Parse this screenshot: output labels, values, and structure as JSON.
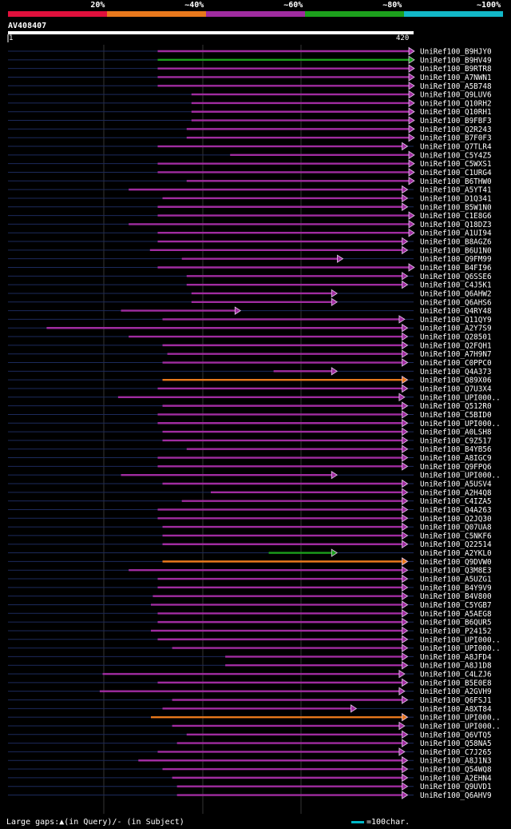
{
  "legend": [
    {
      "label": "20%",
      "color": "#e0103c"
    },
    {
      "label": "~40%",
      "color": "#e8781c"
    },
    {
      "label": "~60%",
      "color": "#a02ca0"
    },
    {
      "label": "~80%",
      "color": "#1ca01c"
    },
    {
      "label": "~100%",
      "color": "#12b8c8"
    }
  ],
  "query": {
    "id": "AV408407",
    "start": "1",
    "end": "420"
  },
  "footer": {
    "gaps_text": "Large gaps:▲(in Query)/- (in Subject)",
    "scale_text": "=100char."
  },
  "chart_data": {
    "type": "alignment",
    "query_length": 420,
    "hits": [
      {
        "name": "UniRef100_B9HJY0",
        "start": 155,
        "end": 420,
        "color": "purple",
        "arrow": "filled"
      },
      {
        "name": "UniRef100_B9HV49",
        "start": 155,
        "end": 420,
        "color": "green",
        "arrow": "filled"
      },
      {
        "name": "UniRef100_B9RTR8",
        "start": 155,
        "end": 420,
        "color": "purple",
        "arrow": "filled"
      },
      {
        "name": "UniRef100_A7NWN1",
        "start": 155,
        "end": 420,
        "color": "purple",
        "arrow": "filled"
      },
      {
        "name": "UniRef100_A5B748",
        "start": 155,
        "end": 420,
        "color": "purple",
        "arrow": "filled"
      },
      {
        "name": "UniRef100_Q9LUV6",
        "start": 190,
        "end": 420,
        "color": "purple",
        "arrow": "filled"
      },
      {
        "name": "UniRef100_Q10RH2",
        "start": 190,
        "end": 420,
        "color": "purple",
        "arrow": "filled"
      },
      {
        "name": "UniRef100_Q10RH1",
        "start": 190,
        "end": 420,
        "color": "purple",
        "arrow": "filled"
      },
      {
        "name": "UniRef100_B9FBF3",
        "start": 190,
        "end": 420,
        "color": "purple",
        "arrow": "filled"
      },
      {
        "name": "UniRef100_Q2R243",
        "start": 185,
        "end": 420,
        "color": "purple",
        "arrow": "filled"
      },
      {
        "name": "UniRef100_B7F0F3",
        "start": 185,
        "end": 420,
        "color": "purple",
        "arrow": "filled"
      },
      {
        "name": "UniRef100_Q7TLR4",
        "start": 155,
        "end": 413,
        "color": "purple",
        "arrow": "filled"
      },
      {
        "name": "UniRef100_C5Y4Z5",
        "start": 230,
        "end": 420,
        "color": "purple",
        "arrow": "filled"
      },
      {
        "name": "UniRef100_C5WXS1",
        "start": 155,
        "end": 420,
        "color": "purple",
        "arrow": "filled"
      },
      {
        "name": "UniRef100_C1URG4",
        "start": 155,
        "end": 420,
        "color": "purple",
        "arrow": "filled"
      },
      {
        "name": "UniRef100_B6THW0",
        "start": 185,
        "end": 420,
        "color": "purple",
        "arrow": "filled"
      },
      {
        "name": "UniRef100_A5YT41",
        "start": 125,
        "end": 413,
        "color": "purple",
        "arrow": "filled"
      },
      {
        "name": "UniRef100_D1Q341",
        "start": 160,
        "end": 413,
        "color": "purple",
        "arrow": "filled"
      },
      {
        "name": "UniRef100_B5W1N0",
        "start": 155,
        "end": 413,
        "color": "purple",
        "arrow": "filled"
      },
      {
        "name": "UniRef100_C1E8G6",
        "start": 155,
        "end": 420,
        "color": "purple",
        "arrow": "filled"
      },
      {
        "name": "UniRef100_Q18DZ3",
        "start": 125,
        "end": 420,
        "color": "purple",
        "arrow": "filled"
      },
      {
        "name": "UniRef100_A1UI94",
        "start": 155,
        "end": 420,
        "color": "purple",
        "arrow": "filled"
      },
      {
        "name": "UniRef100_B8AGZ6",
        "start": 155,
        "end": 413,
        "color": "purple",
        "arrow": "filled"
      },
      {
        "name": "UniRef100_B6U1N0",
        "start": 147,
        "end": 413,
        "color": "purple",
        "arrow": "filled"
      },
      {
        "name": "UniRef100_Q9FM99",
        "start": 180,
        "end": 346,
        "color": "purple",
        "arrow": "filled"
      },
      {
        "name": "UniRef100_B4FI96",
        "start": 155,
        "end": 420,
        "color": "purple",
        "arrow": "filled"
      },
      {
        "name": "UniRef100_Q6SSE6",
        "start": 185,
        "end": 413,
        "color": "purple",
        "arrow": "filled"
      },
      {
        "name": "UniRef100_C4J5K1",
        "start": 185,
        "end": 413,
        "color": "purple",
        "arrow": "filled"
      },
      {
        "name": "UniRef100_Q6AHW2",
        "start": 190,
        "end": 340,
        "color": "purple",
        "arrow": "filled"
      },
      {
        "name": "UniRef100_Q6AHS6",
        "start": 190,
        "end": 340,
        "color": "purple",
        "arrow": "filled"
      },
      {
        "name": "UniRef100_Q4RY48",
        "start": 117,
        "end": 240,
        "color": "purple",
        "arrow": "filled"
      },
      {
        "name": "UniRef100_Q11QY9",
        "start": 160,
        "end": 410,
        "color": "purple",
        "arrow": "filled"
      },
      {
        "name": "UniRef100_A2Y7S9",
        "start": 40,
        "end": 413,
        "color": "purple",
        "arrow": "filled"
      },
      {
        "name": "UniRef100_Q28501",
        "start": 125,
        "end": 413,
        "color": "purple",
        "arrow": "filled"
      },
      {
        "name": "UniRef100_Q2FQH1",
        "start": 160,
        "end": 413,
        "color": "purple",
        "arrow": "filled"
      },
      {
        "name": "UniRef100_A7H9N7",
        "start": 165,
        "end": 413,
        "color": "purple",
        "arrow": "filled"
      },
      {
        "name": "UniRef100_C0PPC0",
        "start": 160,
        "end": 413,
        "color": "purple",
        "arrow": "filled"
      },
      {
        "name": "UniRef100_Q4A373",
        "start": 275,
        "end": 340,
        "color": "purple",
        "arrow": "filled"
      },
      {
        "name": "UniRef100_Q89X06",
        "start": 160,
        "end": 413,
        "color": "orange",
        "arrow": "filled"
      },
      {
        "name": "UniRef100_Q7U3X4",
        "start": 155,
        "end": 413,
        "color": "purple",
        "arrow": "filled"
      },
      {
        "name": "UniRef100_UPI000..",
        "start": 114,
        "end": 410,
        "color": "purple",
        "arrow": "filled"
      },
      {
        "name": "UniRef100_Q512R0",
        "start": 160,
        "end": 413,
        "color": "purple",
        "arrow": "filled"
      },
      {
        "name": "UniRef100_C5BID0",
        "start": 155,
        "end": 413,
        "color": "purple",
        "arrow": "filled"
      },
      {
        "name": "UniRef100_UPI000..",
        "start": 155,
        "end": 413,
        "color": "purple",
        "arrow": "filled"
      },
      {
        "name": "UniRef100_A0LSH8",
        "start": 160,
        "end": 413,
        "color": "purple",
        "arrow": "filled"
      },
      {
        "name": "UniRef100_C9Z517",
        "start": 160,
        "end": 413,
        "color": "purple",
        "arrow": "filled"
      },
      {
        "name": "UniRef100_B4YB56",
        "start": 185,
        "end": 413,
        "color": "purple",
        "arrow": "filled"
      },
      {
        "name": "UniRef100_A8IGC9",
        "start": 155,
        "end": 413,
        "color": "purple",
        "arrow": "filled"
      },
      {
        "name": "UniRef100_Q9FPQ6",
        "start": 155,
        "end": 413,
        "color": "purple",
        "arrow": "filled"
      },
      {
        "name": "UniRef100_UPI000..",
        "start": 117,
        "end": 340,
        "color": "purple",
        "arrow": "filled"
      },
      {
        "name": "UniRef100_A5USV4",
        "start": 160,
        "end": 413,
        "color": "purple",
        "arrow": "filled"
      },
      {
        "name": "UniRef100_A2H4Q8",
        "start": 210,
        "end": 413,
        "color": "purple",
        "arrow": "filled"
      },
      {
        "name": "UniRef100_C4IZA5",
        "start": 180,
        "end": 413,
        "color": "purple",
        "arrow": "filled"
      },
      {
        "name": "UniRef100_Q4A263",
        "start": 155,
        "end": 413,
        "color": "purple",
        "arrow": "filled"
      },
      {
        "name": "UniRef100_Q2JQ30",
        "start": 155,
        "end": 413,
        "color": "purple",
        "arrow": "filled"
      },
      {
        "name": "UniRef100_Q07UA8",
        "start": 160,
        "end": 413,
        "color": "purple",
        "arrow": "filled"
      },
      {
        "name": "UniRef100_C5NKF6",
        "start": 160,
        "end": 413,
        "color": "purple",
        "arrow": "filled"
      },
      {
        "name": "UniRef100_Q22514",
        "start": 160,
        "end": 413,
        "color": "purple",
        "arrow": "filled"
      },
      {
        "name": "UniRef100_A2YKL0",
        "start": 270,
        "end": 340,
        "color": "green",
        "arrow": "filled"
      },
      {
        "name": "UniRef100_Q9DVW0",
        "start": 160,
        "end": 413,
        "color": "orange",
        "arrow": "filled"
      },
      {
        "name": "UniRef100_Q3M8E3",
        "start": 125,
        "end": 413,
        "color": "purple",
        "arrow": "filled"
      },
      {
        "name": "UniRef100_A5UZG1",
        "start": 155,
        "end": 413,
        "color": "purple",
        "arrow": "filled"
      },
      {
        "name": "UniRef100_B4Y9V9",
        "start": 155,
        "end": 413,
        "color": "purple",
        "arrow": "filled"
      },
      {
        "name": "UniRef100_B4V800",
        "start": 150,
        "end": 413,
        "color": "purple",
        "arrow": "filled"
      },
      {
        "name": "UniRef100_C5YGB7",
        "start": 148,
        "end": 413,
        "color": "purple",
        "arrow": "filled"
      },
      {
        "name": "UniRef100_A5AEG8",
        "start": 155,
        "end": 413,
        "color": "purple",
        "arrow": "filled"
      },
      {
        "name": "UniRef100_B6QUR5",
        "start": 155,
        "end": 413,
        "color": "purple",
        "arrow": "filled"
      },
      {
        "name": "UniRef100_P24152",
        "start": 148,
        "end": 413,
        "color": "purple",
        "arrow": "filled"
      },
      {
        "name": "UniRef100_UPI000..",
        "start": 155,
        "end": 413,
        "color": "purple",
        "arrow": "filled"
      },
      {
        "name": "UniRef100_UPI000..",
        "start": 170,
        "end": 413,
        "color": "purple",
        "arrow": "filled"
      },
      {
        "name": "UniRef100_A8JFD4",
        "start": 225,
        "end": 413,
        "color": "purple",
        "arrow": "filled"
      },
      {
        "name": "UniRef100_A8J1D8",
        "start": 225,
        "end": 413,
        "color": "purple",
        "arrow": "filled"
      },
      {
        "name": "UniRef100_C4LZJ6",
        "start": 98,
        "end": 410,
        "color": "purple",
        "arrow": "filled"
      },
      {
        "name": "UniRef100_B5E0E8",
        "start": 155,
        "end": 413,
        "color": "purple",
        "arrow": "filled"
      },
      {
        "name": "UniRef100_A2GVH9",
        "start": 95,
        "end": 410,
        "color": "purple",
        "arrow": "filled"
      },
      {
        "name": "UniRef100_Q6FSJ1",
        "start": 170,
        "end": 413,
        "color": "purple",
        "arrow": "filled"
      },
      {
        "name": "UniRef100_A8XT84",
        "start": 160,
        "end": 360,
        "color": "purple",
        "arrow": "filled"
      },
      {
        "name": "UniRef100_UPI000..",
        "start": 148,
        "end": 413,
        "color": "orange",
        "arrow": "filled"
      },
      {
        "name": "UniRef100_UPI000..",
        "start": 170,
        "end": 410,
        "color": "purple",
        "arrow": "filled"
      },
      {
        "name": "UniRef100_Q6VTQ5",
        "start": 185,
        "end": 413,
        "color": "purple",
        "arrow": "filled"
      },
      {
        "name": "UniRef100_Q58NA5",
        "start": 175,
        "end": 413,
        "color": "purple",
        "arrow": "filled"
      },
      {
        "name": "UniRef100_C7J265",
        "start": 155,
        "end": 410,
        "color": "purple",
        "arrow": "filled"
      },
      {
        "name": "UniRef100_A8J1N3",
        "start": 135,
        "end": 413,
        "color": "purple",
        "arrow": "filled"
      },
      {
        "name": "UniRef100_Q54WQ8",
        "start": 160,
        "end": 413,
        "color": "purple",
        "arrow": "filled"
      },
      {
        "name": "UniRef100_A2EHN4",
        "start": 170,
        "end": 413,
        "color": "purple",
        "arrow": "filled"
      },
      {
        "name": "UniRef100_Q9UVD1",
        "start": 175,
        "end": 413,
        "color": "purple",
        "arrow": "filled"
      },
      {
        "name": "UniRef100_Q6AHV9",
        "start": 175,
        "end": 413,
        "color": "purple",
        "arrow": "filled"
      }
    ]
  }
}
